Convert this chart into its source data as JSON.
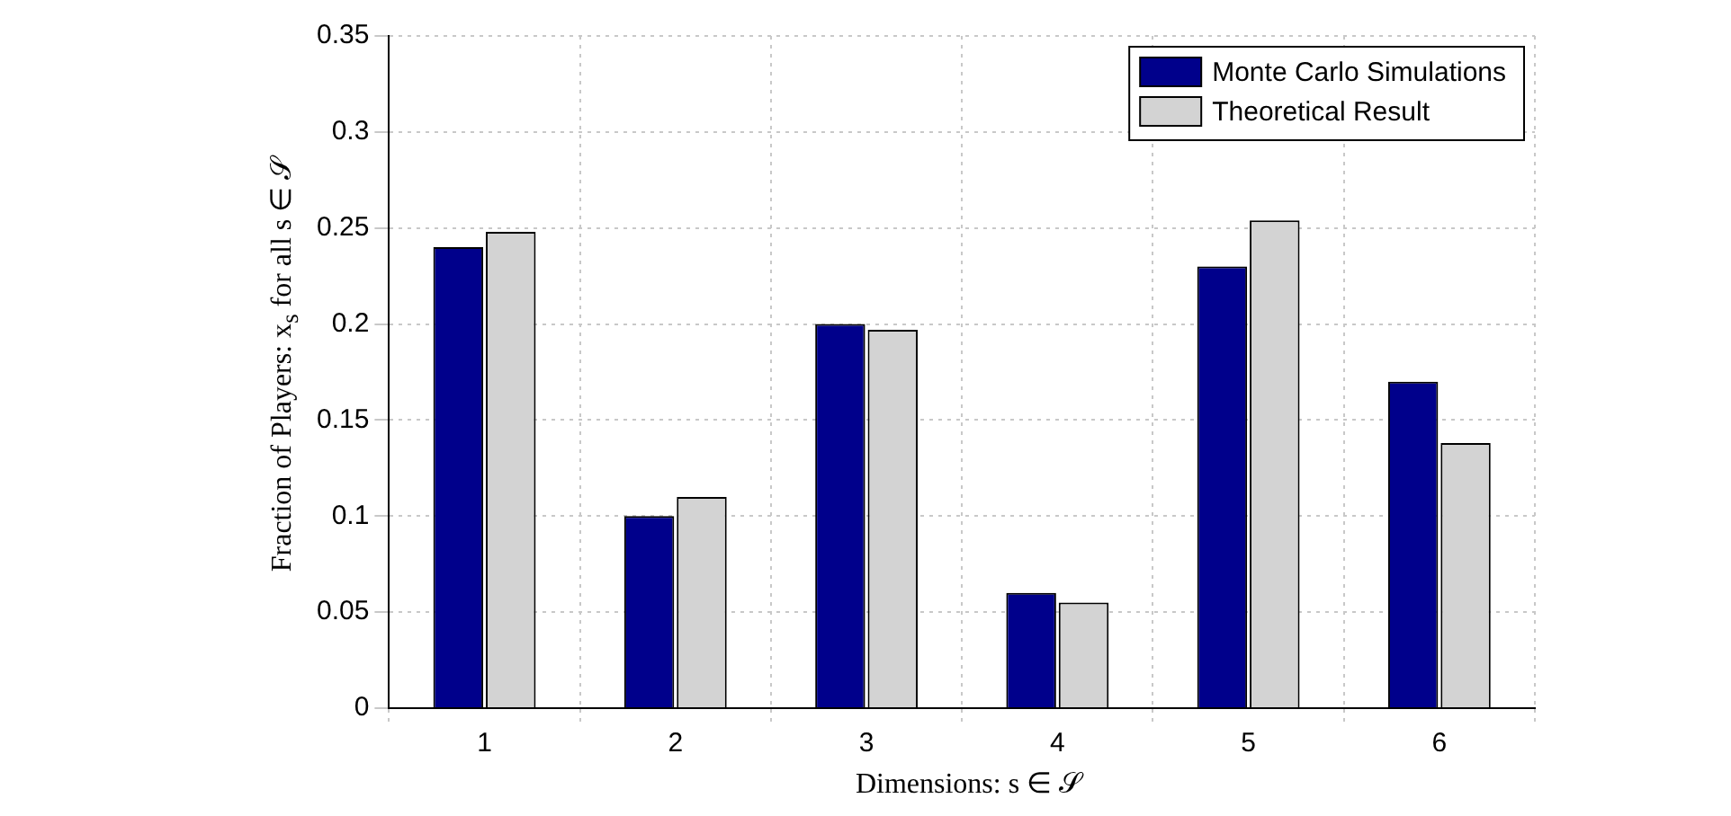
{
  "chart_data": {
    "type": "bar",
    "xlabel": "Dimensions: s ∈ 𝒮",
    "ylabel": "Fraction of Players: x$_{s}$ for all s ∈ 𝒮",
    "categories": [
      "1",
      "2",
      "3",
      "4",
      "5",
      "6"
    ],
    "series": [
      {
        "name": "Monte Carlo Simulations",
        "color": "#00008b",
        "values": [
          0.24,
          0.1,
          0.2,
          0.06,
          0.23,
          0.17
        ]
      },
      {
        "name": "Theoretical Result",
        "color": "#d3d3d3",
        "values": [
          0.248,
          0.11,
          0.197,
          0.055,
          0.254,
          0.138
        ]
      }
    ],
    "ylim": [
      0,
      0.35
    ],
    "yticks": [
      0,
      0.05,
      0.1,
      0.15,
      0.2,
      0.25,
      0.3,
      0.35
    ],
    "grid": true,
    "legend": "top right"
  }
}
